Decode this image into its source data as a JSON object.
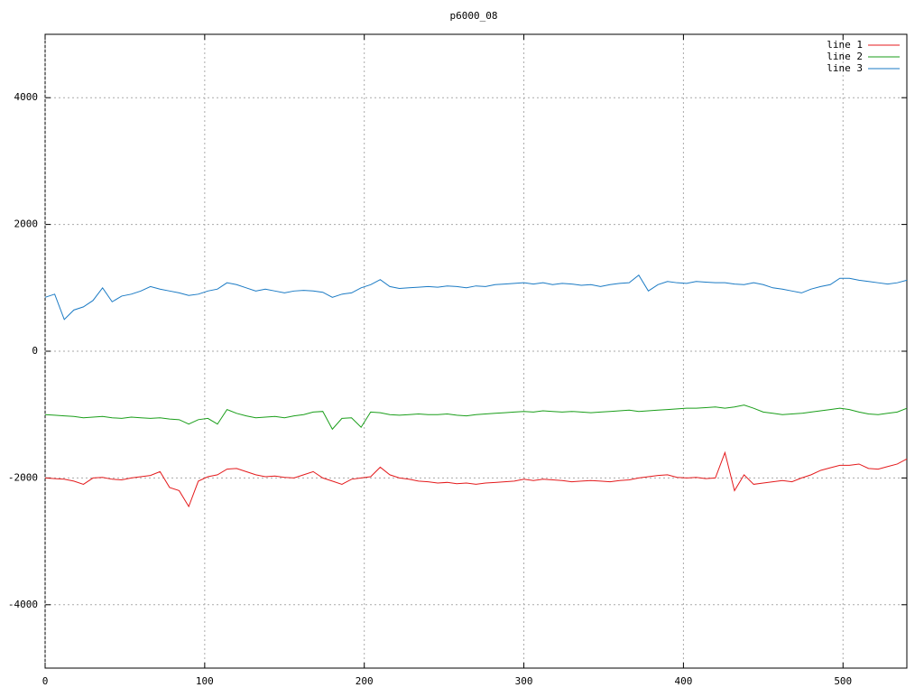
{
  "chart_data": {
    "type": "line",
    "title": "p6000_08",
    "x": [
      0,
      6,
      12,
      18,
      24,
      30,
      36,
      42,
      48,
      54,
      60,
      66,
      72,
      78,
      84,
      90,
      96,
      102,
      108,
      114,
      120,
      126,
      132,
      138,
      144,
      150,
      156,
      162,
      168,
      174,
      180,
      186,
      192,
      198,
      204,
      210,
      216,
      222,
      228,
      234,
      240,
      246,
      252,
      258,
      264,
      270,
      276,
      282,
      288,
      294,
      300,
      306,
      312,
      318,
      324,
      330,
      336,
      342,
      348,
      354,
      360,
      366,
      372,
      378,
      384,
      390,
      396,
      402,
      408,
      414,
      420,
      426,
      432,
      438,
      444,
      450,
      456,
      462,
      468,
      474,
      480,
      486,
      492,
      498,
      504,
      510,
      516,
      522,
      528,
      534,
      540
    ],
    "series": [
      {
        "name": "line 1",
        "color": "#e41a1c",
        "values": [
          -2000,
          -2010,
          -2020,
          -2050,
          -2100,
          -2000,
          -1990,
          -2020,
          -2030,
          -2000,
          -1980,
          -1960,
          -1900,
          -2150,
          -2200,
          -2450,
          -2050,
          -1980,
          -1950,
          -1860,
          -1850,
          -1900,
          -1950,
          -1980,
          -1970,
          -1990,
          -2000,
          -1950,
          -1900,
          -2000,
          -2050,
          -2100,
          -2020,
          -2000,
          -1980,
          -1830,
          -1950,
          -2000,
          -2020,
          -2050,
          -2060,
          -2080,
          -2070,
          -2090,
          -2080,
          -2100,
          -2080,
          -2070,
          -2060,
          -2050,
          -2020,
          -2040,
          -2020,
          -2030,
          -2040,
          -2060,
          -2050,
          -2040,
          -2050,
          -2060,
          -2040,
          -2030,
          -2000,
          -1980,
          -1960,
          -1950,
          -1990,
          -2000,
          -1990,
          -2010,
          -2000,
          -1600,
          -2200,
          -1950,
          -2100,
          -2080,
          -2060,
          -2040,
          -2060,
          -2000,
          -1950,
          -1880,
          -1840,
          -1800,
          -1800,
          -1780,
          -1850,
          -1860,
          -1820,
          -1780,
          -1700
        ]
      },
      {
        "name": "line 2",
        "color": "#1a9e1a",
        "values": [
          -1000,
          -1010,
          -1020,
          -1030,
          -1050,
          -1040,
          -1030,
          -1050,
          -1060,
          -1040,
          -1050,
          -1060,
          -1050,
          -1070,
          -1080,
          -1150,
          -1080,
          -1060,
          -1150,
          -920,
          -980,
          -1020,
          -1050,
          -1040,
          -1030,
          -1050,
          -1020,
          -1000,
          -960,
          -950,
          -1230,
          -1060,
          -1050,
          -1200,
          -960,
          -970,
          -1000,
          -1010,
          -1000,
          -990,
          -1000,
          -1000,
          -990,
          -1010,
          -1020,
          -1000,
          -990,
          -980,
          -970,
          -960,
          -950,
          -960,
          -940,
          -950,
          -960,
          -950,
          -960,
          -970,
          -960,
          -950,
          -940,
          -930,
          -950,
          -940,
          -930,
          -920,
          -910,
          -900,
          -900,
          -890,
          -880,
          -900,
          -880,
          -850,
          -900,
          -960,
          -980,
          -1000,
          -990,
          -980,
          -960,
          -940,
          -920,
          -900,
          -920,
          -960,
          -990,
          -1000,
          -980,
          -960,
          -900
        ]
      },
      {
        "name": "line 3",
        "color": "#1a7ac4",
        "values": [
          850,
          900,
          500,
          650,
          700,
          800,
          1000,
          780,
          870,
          900,
          950,
          1020,
          980,
          950,
          920,
          880,
          900,
          950,
          980,
          1080,
          1050,
          1000,
          950,
          980,
          950,
          920,
          950,
          960,
          950,
          930,
          850,
          900,
          920,
          1000,
          1050,
          1130,
          1020,
          990,
          1000,
          1010,
          1020,
          1010,
          1030,
          1020,
          1000,
          1030,
          1020,
          1050,
          1060,
          1070,
          1080,
          1060,
          1080,
          1050,
          1070,
          1060,
          1040,
          1050,
          1020,
          1050,
          1070,
          1080,
          1200,
          950,
          1050,
          1100,
          1080,
          1070,
          1100,
          1090,
          1080,
          1080,
          1060,
          1050,
          1080,
          1050,
          1000,
          980,
          950,
          920,
          980,
          1020,
          1050,
          1150,
          1150,
          1120,
          1100,
          1080,
          1060,
          1080,
          1120
        ]
      }
    ],
    "xlim": [
      0,
      540
    ],
    "xticks": [
      0,
      100,
      200,
      300,
      400,
      500
    ],
    "ylim": [
      -5000,
      5000
    ],
    "yticks": [
      -4000,
      -2000,
      0,
      2000,
      4000
    ],
    "grid": true,
    "legend": "top-right"
  }
}
